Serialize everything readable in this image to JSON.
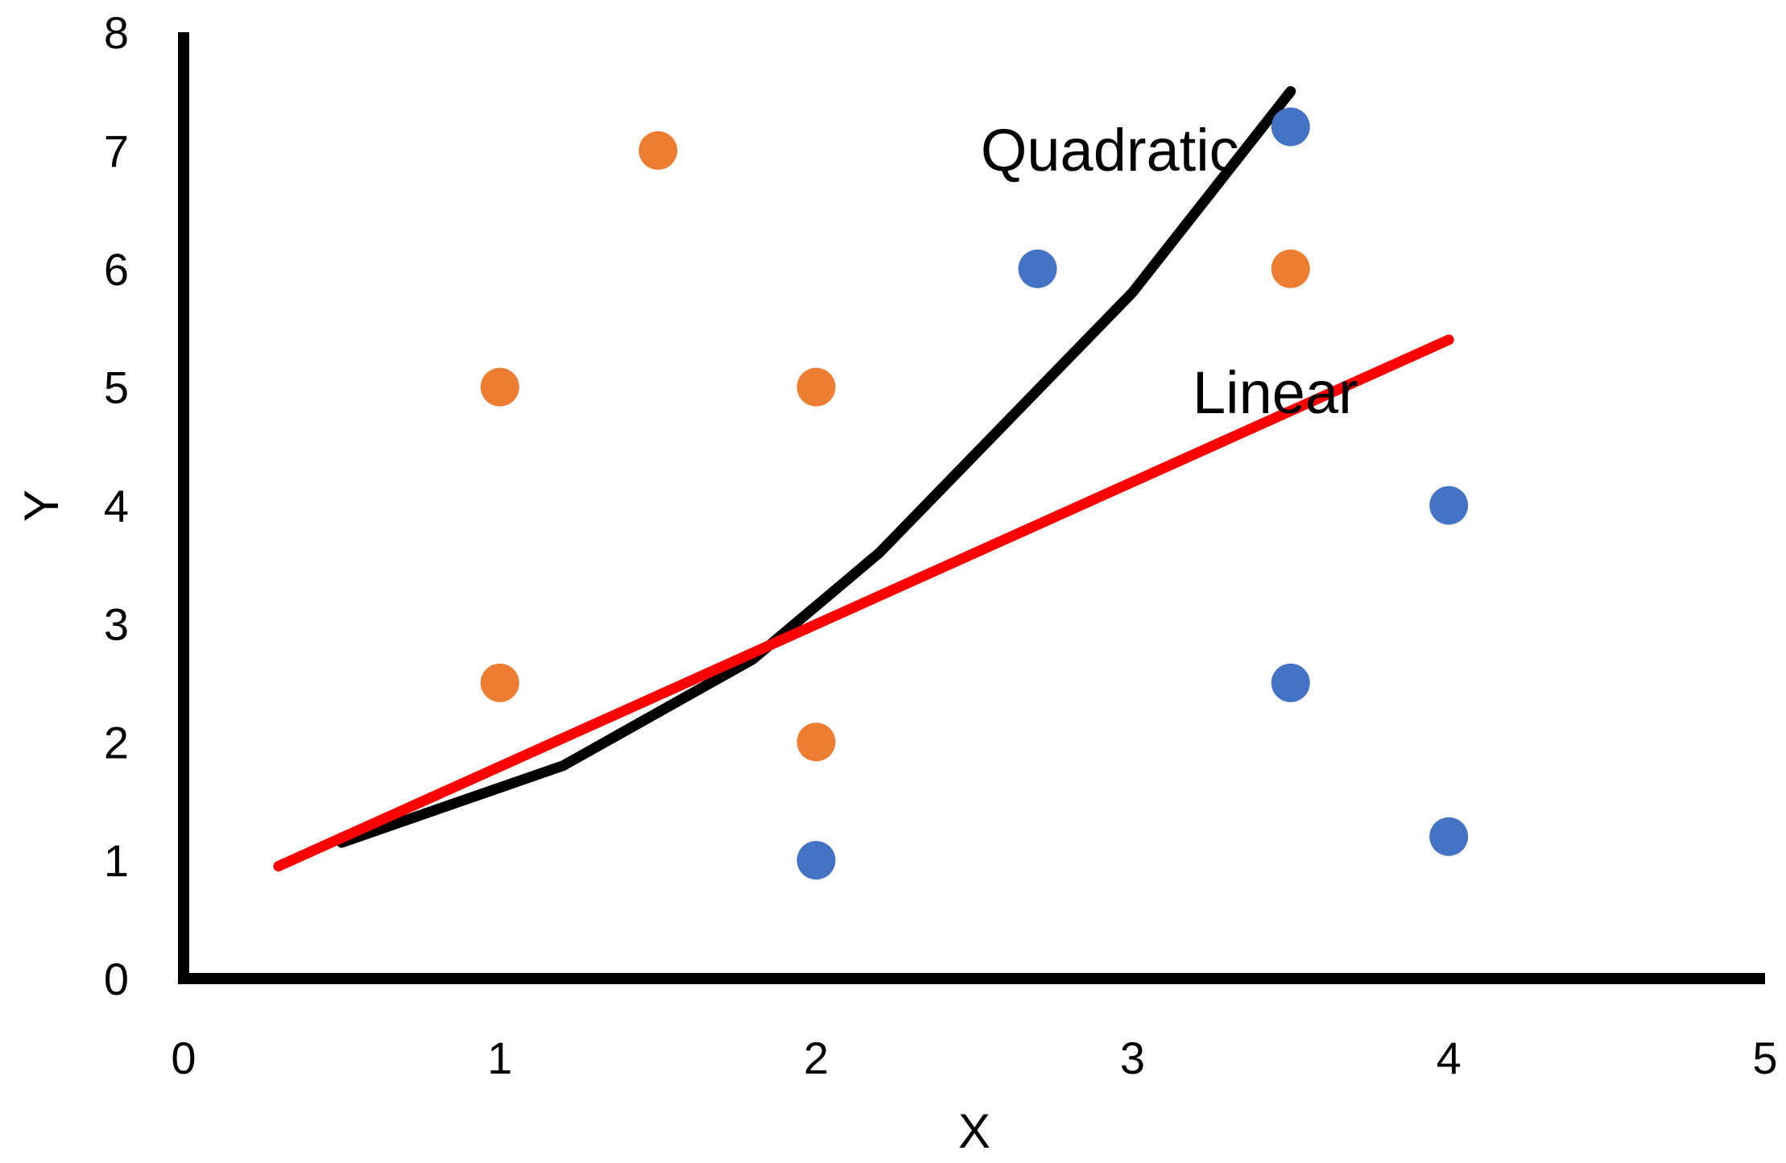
{
  "chart_data": {
    "type": "scatter",
    "title": "",
    "xlabel": "X",
    "ylabel": "Y",
    "xlim": [
      0,
      5
    ],
    "ylim": [
      0,
      8
    ],
    "x_ticks": [
      "0",
      "1",
      "2",
      "3",
      "4",
      "5"
    ],
    "y_ticks": [
      "0",
      "1",
      "2",
      "3",
      "4",
      "5",
      "6",
      "7",
      "8"
    ],
    "grid": false,
    "legend": "none",
    "series": [
      {
        "kind": "points",
        "color": "#4472C4",
        "points": [
          [
            2.0,
            1.0
          ],
          [
            2.7,
            6.0
          ],
          [
            3.5,
            7.2
          ],
          [
            3.5,
            2.5
          ],
          [
            4.0,
            4.0
          ],
          [
            4.0,
            1.2
          ]
        ]
      },
      {
        "kind": "points",
        "color": "#ED7D31",
        "points": [
          [
            1.0,
            5.0
          ],
          [
            1.0,
            2.5
          ],
          [
            1.5,
            7.0
          ],
          [
            2.0,
            5.0
          ],
          [
            2.0,
            2.0
          ],
          [
            3.5,
            6.0
          ]
        ]
      },
      {
        "kind": "line",
        "color": "#000000",
        "points": [
          [
            0.5,
            1.15
          ],
          [
            1.2,
            1.8
          ],
          [
            1.8,
            2.7
          ],
          [
            2.2,
            3.6
          ],
          [
            2.6,
            4.7
          ],
          [
            3.0,
            5.8
          ],
          [
            3.5,
            7.5
          ]
        ]
      },
      {
        "kind": "line",
        "color": "#FF0000",
        "points": [
          [
            0.3,
            0.95
          ],
          [
            4.0,
            5.4
          ]
        ]
      }
    ],
    "annotations": [
      {
        "text": "Quadratic",
        "x": 2.52,
        "y": 7.0
      },
      {
        "text": "Linear",
        "x": 3.19,
        "y": 4.95
      }
    ]
  }
}
